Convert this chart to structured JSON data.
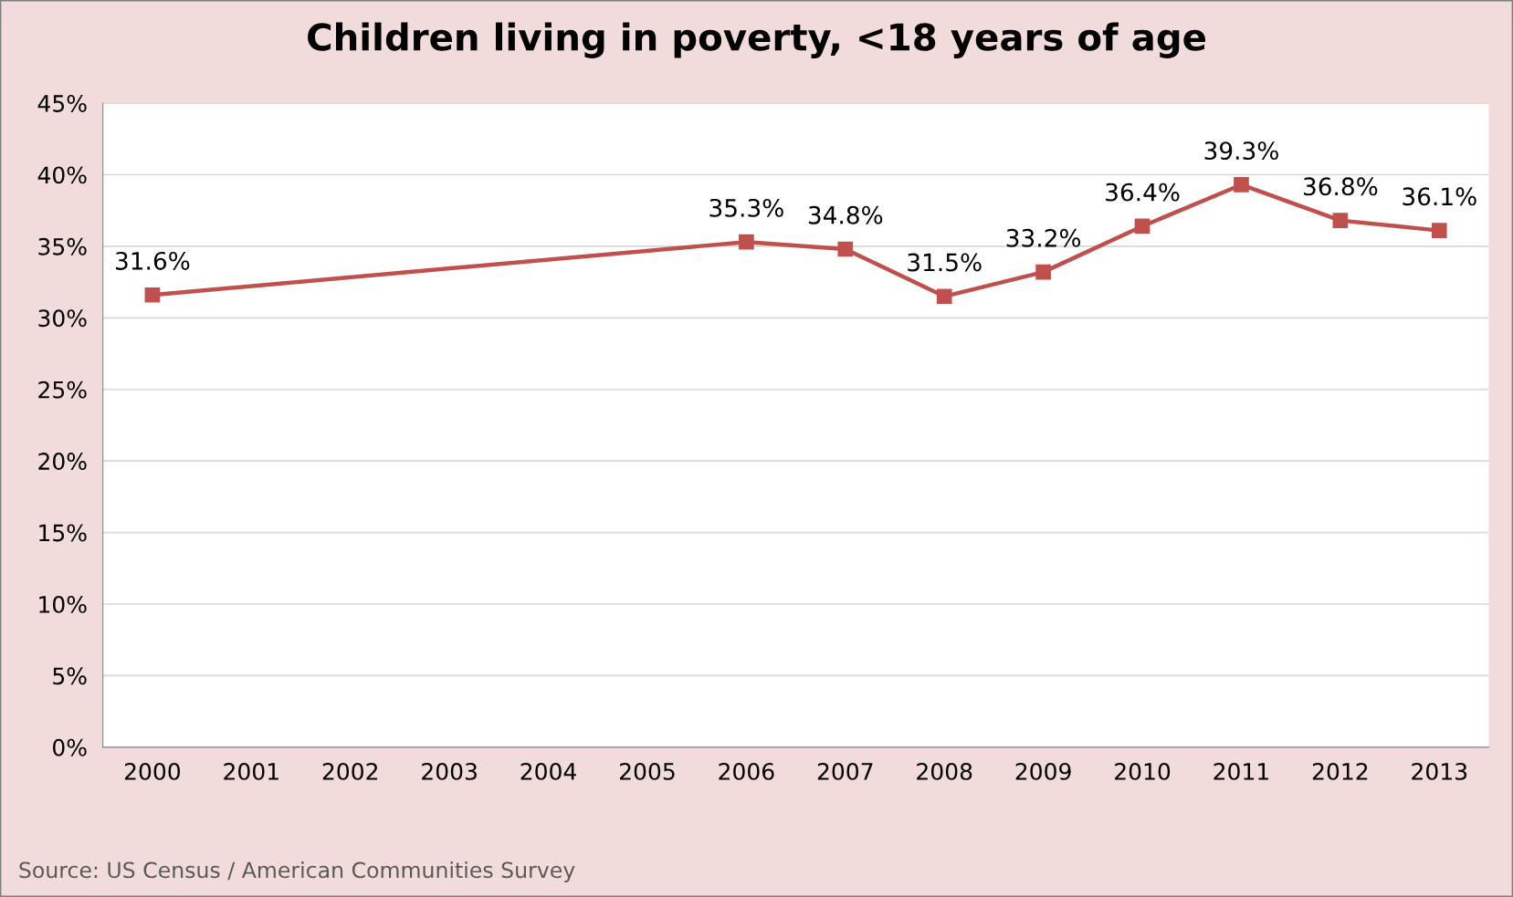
{
  "chart_data": {
    "type": "line",
    "title": "Children living in poverty, <18 years of age",
    "annotations": [
      "Source: US Census / American Communities Survey"
    ],
    "x": [
      2000,
      2006,
      2007,
      2008,
      2009,
      2010,
      2011,
      2012,
      2013
    ],
    "series": [
      {
        "color": "#c0504d",
        "values": [
          31.6,
          35.3,
          34.8,
          31.5,
          33.2,
          36.4,
          39.3,
          36.8,
          36.1
        ],
        "value_labels": [
          "31.6%",
          "35.3%",
          "34.8%",
          "31.5%",
          "33.2%",
          "36.4%",
          "39.3%",
          "36.8%",
          "36.1%"
        ]
      }
    ],
    "xlim": [
      1999.5,
      2013.5
    ],
    "xticks": [
      2000,
      2001,
      2002,
      2003,
      2004,
      2005,
      2006,
      2007,
      2008,
      2009,
      2010,
      2011,
      2012,
      2013
    ],
    "ylim": [
      0,
      45
    ],
    "yticks": [
      {
        "value": 0,
        "label": "0%"
      },
      {
        "value": 5,
        "label": "5%"
      },
      {
        "value": 10,
        "label": "10%"
      },
      {
        "value": 15,
        "label": "15%"
      },
      {
        "value": 20,
        "label": "20%"
      },
      {
        "value": 25,
        "label": "25%"
      },
      {
        "value": 30,
        "label": "30%"
      },
      {
        "value": 35,
        "label": "35%"
      },
      {
        "value": 40,
        "label": "40%"
      },
      {
        "value": 45,
        "label": "45%"
      }
    ],
    "grid": "y",
    "marker": "square",
    "line_style": "solid"
  }
}
